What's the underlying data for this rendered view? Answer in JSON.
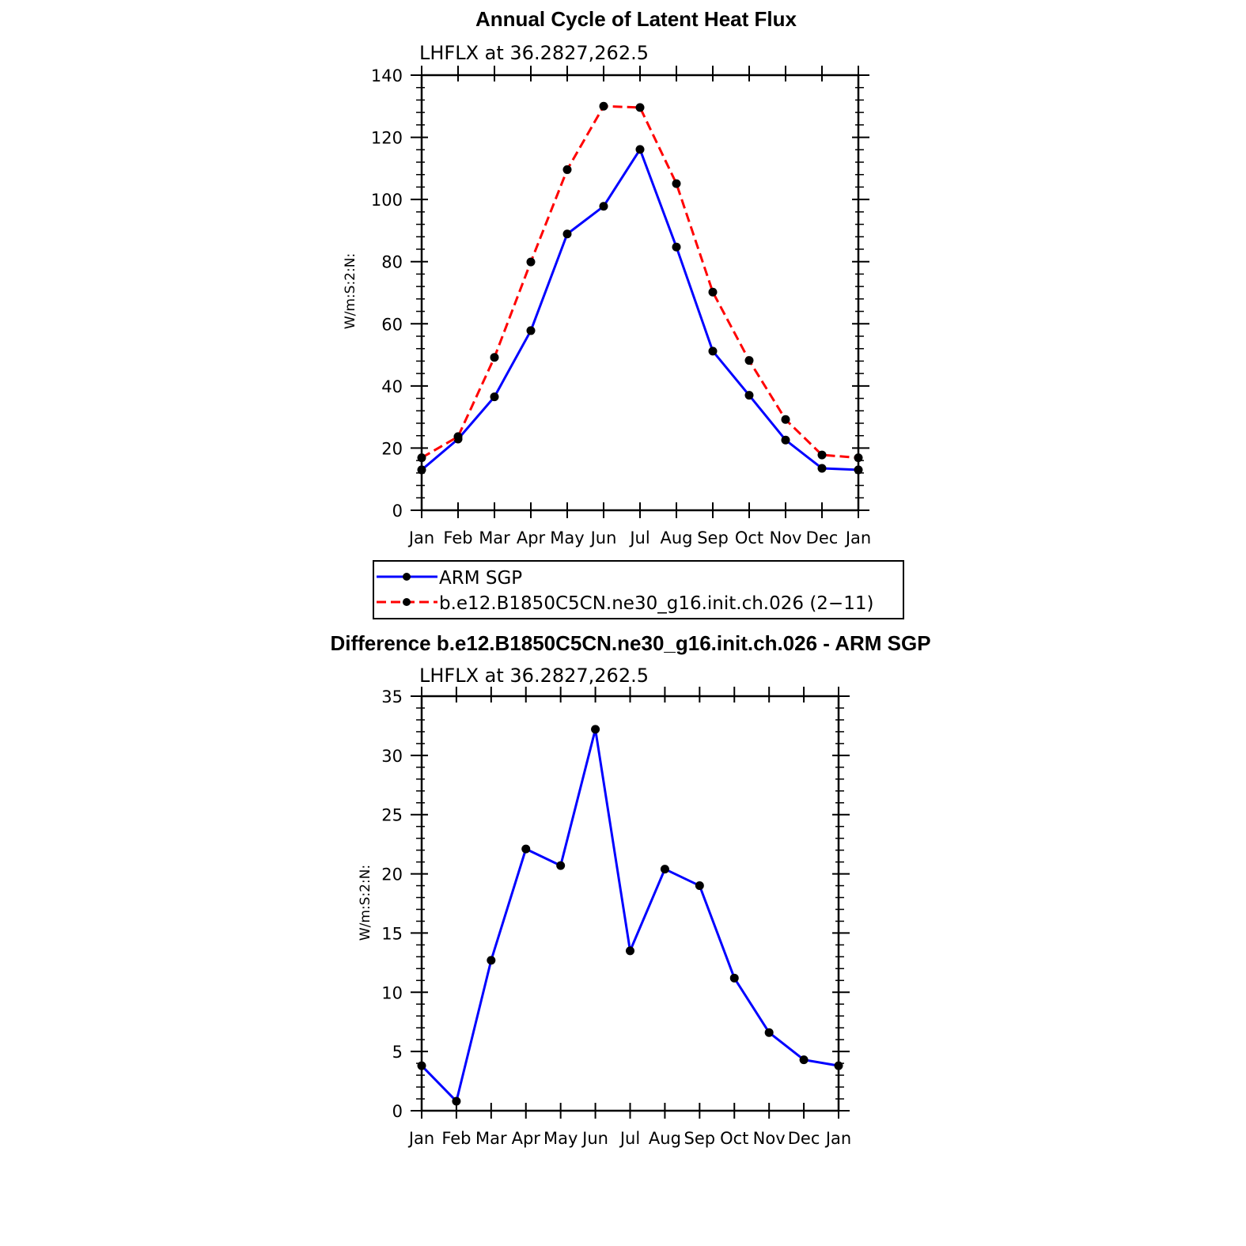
{
  "chart_data": [
    {
      "type": "line",
      "title": "Annual Cycle of Latent Heat Flux",
      "subtitle": "LHFLX at 36.2827,262.5",
      "ylabel": "W/m:S:2:N:",
      "xlabel": "",
      "categories": [
        "Jan",
        "Feb",
        "Mar",
        "Apr",
        "May",
        "Jun",
        "Jul",
        "Aug",
        "Sep",
        "Oct",
        "Nov",
        "Dec",
        "Jan"
      ],
      "ylim": [
        0,
        140
      ],
      "yticks": [
        "0",
        "20",
        "40",
        "60",
        "80",
        "100",
        "120",
        "140"
      ],
      "series": [
        {
          "name": "ARM SGP",
          "color": "#0000ff",
          "dash": "solid",
          "values": [
            13.0,
            22.9,
            36.5,
            57.8,
            88.9,
            97.8,
            116.1,
            84.7,
            51.2,
            37.0,
            22.6,
            13.5,
            13.0
          ]
        },
        {
          "name": "b.e12.B1850C5CN.ne30_g16.init.ch.026 (2−11)",
          "color": "#ff0000",
          "dash": "dashed",
          "values": [
            16.9,
            23.7,
            49.2,
            79.9,
            109.6,
            130.0,
            129.6,
            105.1,
            70.2,
            48.2,
            29.2,
            17.8,
            16.9
          ]
        }
      ],
      "legend": "below"
    },
    {
      "type": "line",
      "title": "Difference b.e12.B1850C5CN.ne30_g16.init.ch.026 - ARM SGP",
      "subtitle": "LHFLX at 36.2827,262.5",
      "ylabel": "W/m:S:2:N:",
      "xlabel": "",
      "categories": [
        "Jan",
        "Feb",
        "Mar",
        "Apr",
        "May",
        "Jun",
        "Jul",
        "Aug",
        "Sep",
        "Oct",
        "Nov",
        "Dec",
        "Jan"
      ],
      "ylim": [
        0,
        35
      ],
      "yticks": [
        "0",
        "5",
        "10",
        "15",
        "20",
        "25",
        "30",
        "35"
      ],
      "series": [
        {
          "name": "Difference",
          "color": "#0000ff",
          "dash": "solid",
          "values": [
            3.8,
            0.8,
            12.7,
            22.1,
            20.7,
            32.2,
            13.5,
            20.4,
            19.0,
            11.2,
            6.6,
            4.3,
            3.8
          ]
        }
      ]
    }
  ]
}
